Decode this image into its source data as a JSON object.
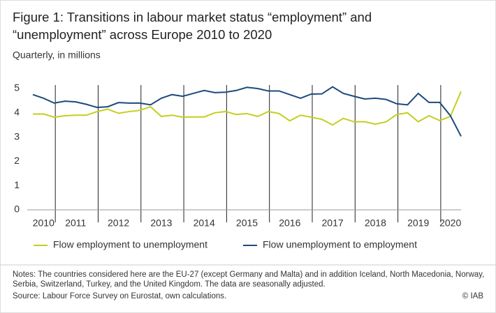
{
  "chart_data": {
    "type": "line",
    "title": [
      "Figure 1: Transitions in labour market status “employment” and",
      "“unemployment” across Europe 2010 to 2020"
    ],
    "subtitle": "Quarterly, in millions",
    "categories": [
      null,
      "2010",
      null,
      null,
      "2011",
      null,
      null,
      null,
      "2012",
      null,
      null,
      null,
      "2013",
      null,
      null,
      null,
      "2014",
      null,
      null,
      null,
      "2015",
      null,
      null,
      null,
      "2016",
      null,
      null,
      null,
      "2017",
      null,
      null,
      null,
      "2018",
      null,
      null,
      null,
      "2019",
      null,
      null,
      "2020",
      null
    ],
    "series": [
      {
        "name": "Flow employment to unemployment",
        "color": "#c3cf1e",
        "values": [
          3.95,
          3.95,
          3.82,
          3.88,
          3.9,
          3.9,
          4.05,
          4.15,
          3.98,
          4.05,
          4.1,
          4.25,
          3.85,
          3.9,
          3.82,
          3.83,
          3.83,
          4.0,
          4.05,
          3.93,
          3.97,
          3.85,
          4.05,
          3.97,
          3.67,
          3.9,
          3.82,
          3.73,
          3.5,
          3.77,
          3.63,
          3.63,
          3.53,
          3.63,
          3.93,
          4.0,
          3.63,
          3.88,
          3.68,
          3.85,
          4.88
        ]
      },
      {
        "name": "Flow unemployment to employment",
        "color": "#1c4a7c",
        "values": [
          4.75,
          4.6,
          4.4,
          4.48,
          4.45,
          4.35,
          4.22,
          4.25,
          4.42,
          4.4,
          4.4,
          4.33,
          4.6,
          4.75,
          4.68,
          4.8,
          4.92,
          4.83,
          4.85,
          4.92,
          5.05,
          5.0,
          4.9,
          4.9,
          4.75,
          4.6,
          4.77,
          4.78,
          5.07,
          4.8,
          4.68,
          4.57,
          4.6,
          4.55,
          4.37,
          4.33,
          4.8,
          4.43,
          4.43,
          3.88,
          3.03
        ]
      }
    ],
    "ylim": [
      0,
      5
    ],
    "yticks": [
      0,
      1,
      2,
      3,
      4,
      5
    ],
    "grid": false,
    "notes": [
      "Notes: The countries considered here are the EU-27 (except Germany and Malta) and in addition Iceland, North Macedonia, Norway,",
      "Serbia, Switzerland, Turkey, and the United Kingdom. The data are seasonally adjusted."
    ],
    "source": "Source: Labour Force Survey on Eurostat, own calculations.",
    "copyright": "© IAB"
  }
}
